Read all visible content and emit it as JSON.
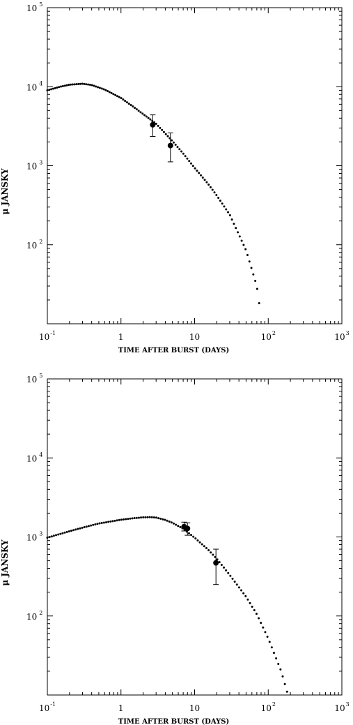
{
  "chart_data": [
    {
      "type": "scatter",
      "xlabel": "TIME AFTER BURST (DAYS)",
      "ylabel": "μ JANSKY",
      "x_scale": "log",
      "y_scale": "log",
      "xlim": [
        0.1,
        1000
      ],
      "ylim": [
        10,
        100000
      ],
      "x_tick_labels": [
        {
          "value": 0.1,
          "base": "10",
          "exp": "-1"
        },
        {
          "value": 1,
          "base": "1",
          "exp": ""
        },
        {
          "value": 10,
          "base": "10",
          "exp": ""
        },
        {
          "value": 100,
          "base": "10",
          "exp": "2"
        },
        {
          "value": 1000,
          "base": "10",
          "exp": "3"
        }
      ],
      "y_tick_labels": [
        {
          "value": 100,
          "base": "10",
          "exp": "2"
        },
        {
          "value": 1000,
          "base": "10",
          "exp": "3"
        },
        {
          "value": 10000,
          "base": "10",
          "exp": "4"
        },
        {
          "value": 100000,
          "base": "10",
          "exp": "5"
        }
      ],
      "model_curve": {
        "style": "dotted",
        "x": [
          0.1,
          0.15,
          0.2,
          0.3,
          0.4,
          0.6,
          1.0,
          1.5,
          2.0,
          3.0,
          5.0,
          7.0,
          10,
          15,
          20,
          30,
          50,
          70,
          80
        ],
        "y": [
          9000,
          10000,
          10600,
          10900,
          10500,
          9200,
          7200,
          5500,
          4500,
          3400,
          2050,
          1430,
          940,
          600,
          420,
          240,
          85,
          30,
          12
        ]
      },
      "data_points": {
        "x": [
          2.7,
          4.7
        ],
        "y": [
          3300,
          1800
        ],
        "y_err_low": [
          2350,
          1120
        ],
        "y_err_high": [
          4400,
          2600
        ]
      }
    },
    {
      "type": "scatter",
      "xlabel": "TIME AFTER BURST (DAYS)",
      "ylabel": "μ JANSKY",
      "x_scale": "log",
      "y_scale": "log",
      "xlim": [
        0.1,
        1000
      ],
      "ylim": [
        10,
        100000
      ],
      "x_tick_labels": [
        {
          "value": 0.1,
          "base": "10",
          "exp": "-1"
        },
        {
          "value": 1,
          "base": "1",
          "exp": ""
        },
        {
          "value": 10,
          "base": "10",
          "exp": ""
        },
        {
          "value": 100,
          "base": "10",
          "exp": "2"
        },
        {
          "value": 1000,
          "base": "10",
          "exp": "3"
        }
      ],
      "y_tick_labels": [
        {
          "value": 100,
          "base": "10",
          "exp": "2"
        },
        {
          "value": 1000,
          "base": "10",
          "exp": "3"
        },
        {
          "value": 10000,
          "base": "10",
          "exp": "4"
        },
        {
          "value": 100000,
          "base": "10",
          "exp": "5"
        }
      ],
      "model_curve": {
        "style": "dotted",
        "x": [
          0.1,
          0.2,
          0.3,
          0.5,
          1.0,
          1.5,
          2.0,
          2.5,
          3.0,
          4.0,
          5.0,
          7.0,
          10,
          15,
          20,
          30,
          50,
          70,
          100,
          150,
          180
        ],
        "y": [
          980,
          1180,
          1310,
          1480,
          1650,
          1730,
          1770,
          1780,
          1760,
          1640,
          1510,
          1270,
          980,
          700,
          530,
          330,
          175,
          105,
          52,
          20,
          11
        ]
      },
      "data_points": {
        "x": [
          7.2,
          8.0,
          19.5
        ],
        "y": [
          1350,
          1280,
          470
        ],
        "y_err_low": [
          1190,
          1050,
          250
        ],
        "y_err_high": [
          1540,
          1510,
          700
        ]
      }
    }
  ]
}
